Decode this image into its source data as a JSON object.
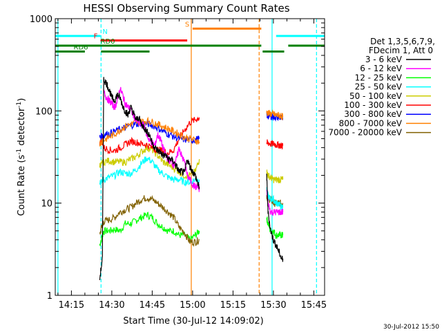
{
  "chart_data": {
    "type": "line",
    "title": "HESSI Observing Summary Count Rates",
    "xlabel": "Start Time (30-Jul-12 14:09:02)",
    "ylabel_main": "Count Rate (s",
    "ylabel_sup1": "-1",
    "ylabel_mid": " detector",
    "ylabel_sup2": "-1",
    "ylabel_end": ")",
    "ylim": [
      1,
      1000
    ],
    "yscale": "log",
    "xlim_minutes": [
      -6,
      94
    ],
    "x_origin": "14:09:02",
    "xticks": [
      {
        "label": "14:15",
        "min": 0
      },
      {
        "label": "14:30",
        "min": 15
      },
      {
        "label": "14:45",
        "min": 30
      },
      {
        "label": "15:00",
        "min": 45
      },
      {
        "label": "15:15",
        "min": 60
      },
      {
        "label": "15:30",
        "min": 75
      },
      {
        "label": "15:45",
        "min": 90
      }
    ],
    "yticks": [
      {
        "label": "1",
        "value": 1
      },
      {
        "label": "10",
        "value": 10
      },
      {
        "label": "100",
        "value": 100
      },
      {
        "label": "1000",
        "value": 1000
      }
    ],
    "timestamp": "30-Jul-2012 15:50",
    "legend": {
      "header1": "Det 1,3,5,6,7,9,",
      "header2": "FDecim 1, Att 0",
      "placement": "right"
    },
    "series": [
      {
        "name": "3 - 6 keV",
        "color": "#000000",
        "x": [
          10.5,
          11.5,
          12,
          13,
          14,
          15,
          16,
          17,
          18,
          19,
          20,
          21,
          22,
          23,
          24,
          25,
          26,
          27,
          28,
          29,
          30,
          31,
          32,
          33,
          34,
          35,
          36,
          37,
          38,
          39,
          40,
          41,
          42,
          43,
          44,
          45,
          46,
          47,
          47.5
        ],
        "y": [
          1.5,
          2.5,
          220,
          200,
          170,
          140,
          130,
          150,
          140,
          115,
          100,
          90,
          110,
          95,
          80,
          85,
          72,
          66,
          60,
          55,
          45,
          40,
          37,
          36,
          33,
          33,
          30,
          30,
          28,
          25,
          22,
          22,
          21,
          30,
          25,
          22,
          20,
          16,
          15
        ]
      },
      {
        "name": "6 - 12 keV",
        "color": "#ff00ff",
        "x": [
          12,
          13,
          14,
          15,
          16,
          17,
          18,
          19,
          20,
          21,
          22,
          23,
          24,
          25,
          26,
          27,
          28,
          29,
          30,
          31,
          32,
          33,
          34,
          35,
          36,
          37,
          38,
          39,
          40,
          41,
          42,
          43,
          44,
          45,
          46,
          47,
          47.5
        ],
        "y": [
          160,
          140,
          130,
          120,
          110,
          125,
          175,
          150,
          120,
          110,
          105,
          90,
          80,
          75,
          70,
          70,
          55,
          48,
          45,
          42,
          55,
          50,
          40,
          33,
          30,
          28,
          26,
          30,
          40,
          32,
          28,
          20,
          18,
          16,
          15,
          15,
          14
        ]
      },
      {
        "name": "12 - 25 keV",
        "color": "#00ff00",
        "x": [
          10.5,
          11.5,
          12,
          14,
          16,
          18,
          20,
          22,
          24,
          26,
          28,
          30,
          32,
          34,
          36,
          38,
          40,
          42,
          44,
          46,
          47.5
        ],
        "y": [
          3.5,
          4.5,
          5.0,
          5.0,
          5.2,
          5.0,
          6.0,
          6.0,
          6.5,
          7.0,
          7.5,
          7.0,
          6.0,
          5.5,
          5.0,
          5.0,
          4.5,
          4.5,
          4.0,
          4.5,
          5.0
        ]
      },
      {
        "name": "25 - 50 keV",
        "color": "#00ffff",
        "x": [
          10.5,
          11.5,
          12,
          14,
          16,
          18,
          20,
          22,
          24,
          26,
          28,
          30,
          32,
          34,
          36,
          38,
          40,
          42,
          44,
          46,
          47.5
        ],
        "y": [
          17,
          18,
          18,
          19,
          20,
          22,
          21,
          21,
          23,
          27,
          31,
          28,
          23,
          21,
          19,
          18,
          18,
          17,
          17,
          18,
          18
        ]
      },
      {
        "name": "50 - 100 keV",
        "color": "#cccc00",
        "x": [
          10.5,
          11.5,
          12,
          14,
          16,
          18,
          20,
          22,
          24,
          26,
          28,
          30,
          32,
          34,
          36,
          38,
          40,
          42,
          44,
          46,
          47.5
        ],
        "y": [
          26,
          27,
          28,
          29,
          28,
          28,
          28,
          30,
          32,
          36,
          40,
          38,
          33,
          28,
          26,
          24,
          22,
          20,
          20,
          22,
          30
        ]
      },
      {
        "name": "100 - 300 keV",
        "color": "#ff0000",
        "x": [
          10.5,
          11.5,
          12,
          14,
          16,
          18,
          20,
          22,
          24,
          26,
          28,
          30,
          32,
          34,
          36,
          38,
          40,
          42,
          44,
          46,
          47.5
        ],
        "y": [
          45,
          48,
          40,
          38,
          37,
          40,
          43,
          47,
          46,
          44,
          43,
          40,
          38,
          37,
          35,
          38,
          50,
          62,
          75,
          80,
          85
        ]
      },
      {
        "name": "300 - 800 keV",
        "color": "#0000ff",
        "x": [
          10.5,
          11.5,
          12,
          14,
          16,
          18,
          20,
          22,
          24,
          26,
          28,
          30,
          32,
          34,
          36,
          38,
          40,
          42,
          44,
          46,
          47.5
        ],
        "y": [
          52,
          54,
          55,
          57,
          60,
          63,
          66,
          70,
          72,
          74,
          73,
          70,
          66,
          60,
          56,
          53,
          50,
          49,
          48,
          49,
          50
        ]
      },
      {
        "name": "800 - 7000 keV",
        "color": "#ff8000",
        "x": [
          10.5,
          11.5,
          12,
          14,
          16,
          18,
          20,
          22,
          24,
          26,
          28,
          30,
          32,
          34,
          36,
          38,
          40,
          42,
          44,
          46,
          47.5
        ],
        "y": [
          45,
          47,
          48,
          52,
          56,
          62,
          68,
          72,
          75,
          77,
          78,
          76,
          72,
          68,
          64,
          60,
          56,
          52,
          50,
          48,
          46
        ]
      },
      {
        "name": "7000 - 20000 keV",
        "color": "#806000",
        "x": [
          10.5,
          11.5,
          12,
          14,
          16,
          18,
          20,
          22,
          24,
          26,
          28,
          30,
          32,
          34,
          36,
          38,
          40,
          42,
          44,
          46,
          47.5
        ],
        "y": [
          4.5,
          6.0,
          6.3,
          6.6,
          7.0,
          8.0,
          8.5,
          9.0,
          10.0,
          11.0,
          11.5,
          11.0,
          10.0,
          9.0,
          8.0,
          7.0,
          5.5,
          4.8,
          3.8,
          3.8,
          4.0
        ]
      }
    ],
    "post_gap": {
      "x": [
        72.5,
        73,
        74,
        75,
        76,
        77,
        78,
        78.5
      ],
      "series_values": [
        [
          20,
          8,
          5,
          4,
          3.5,
          3.0,
          2.5,
          2.5
        ],
        [
          14,
          10,
          8,
          8,
          8,
          8,
          8,
          8
        ],
        [
          7,
          6,
          5,
          5,
          4.5,
          4.5,
          4.5,
          4.5
        ],
        [
          14,
          12,
          11,
          11,
          10,
          10,
          9,
          9
        ],
        [
          22,
          20,
          19,
          18,
          18,
          18,
          18,
          18
        ],
        [
          45,
          45,
          44,
          44,
          43,
          43,
          42,
          42
        ],
        [
          90,
          88,
          88,
          86,
          86,
          85,
          84,
          84
        ],
        [
          95,
          95,
          93,
          92,
          90,
          90,
          88,
          86
        ],
        [
          12,
          11,
          11,
          10,
          10,
          10,
          10,
          10
        ]
      ]
    },
    "state_bars": [
      {
        "label": "N",
        "color": "#00ffff",
        "x0": -6,
        "x1": 10.8,
        "y": 650,
        "label_x": 12.5
      },
      {
        "label": "N",
        "color": "#00ffff",
        "x0": 76,
        "x1": 94,
        "y": 650,
        "label_x": null
      },
      {
        "label": "S",
        "color": "#ff8000",
        "x0": 45,
        "x1": 70.5,
        "y": 780,
        "label_x": 43
      },
      {
        "label": "F",
        "color": "#ff0000",
        "x0": 10.8,
        "x1": 43,
        "y": 580,
        "label_x": 9
      },
      {
        "label": "RD0",
        "color": "#008000",
        "x0": -6,
        "x1": 70.5,
        "y": 510,
        "label_x": 13.5
      },
      {
        "label": "RD0",
        "color": "#008000",
        "x0": 80.5,
        "x1": 94,
        "y": 510,
        "label_x": null
      },
      {
        "label": "RD6",
        "color": "#008000",
        "x0": -6,
        "x1": 5,
        "y": 440,
        "label_x": 3.5
      },
      {
        "label": "RD6",
        "color": "#008000",
        "x0": 11,
        "x1": 29,
        "y": 440,
        "label_x": null
      },
      {
        "label": "RD6",
        "color": "#008000",
        "x0": 71,
        "x1": 79,
        "y": 440,
        "label_x": null
      }
    ],
    "vlines": [
      {
        "min": -5,
        "color": "#00ffff",
        "dash": false
      },
      {
        "min": 11,
        "color": "#00ffff",
        "dash": true
      },
      {
        "min": 44.5,
        "color": "#ff8000",
        "dash": false
      },
      {
        "min": 69.7,
        "color": "#ff8000",
        "dash": true
      },
      {
        "min": 74.5,
        "color": "#00ffff",
        "dash": false
      },
      {
        "min": 91,
        "color": "#00ffff",
        "dash": true
      }
    ]
  }
}
